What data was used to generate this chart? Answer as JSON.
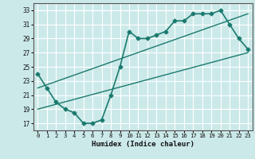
{
  "xlabel": "Humidex (Indice chaleur)",
  "bg_color": "#cce9e9",
  "grid_color": "#ffffff",
  "line_color": "#1a7a6e",
  "xlim": [
    -0.5,
    23.5
  ],
  "ylim": [
    16,
    34
  ],
  "xticks": [
    0,
    1,
    2,
    3,
    4,
    5,
    6,
    7,
    8,
    9,
    10,
    11,
    12,
    13,
    14,
    15,
    16,
    17,
    18,
    19,
    20,
    21,
    22,
    23
  ],
  "yticks": [
    17,
    19,
    21,
    23,
    25,
    27,
    29,
    31,
    33
  ],
  "line1_x": [
    0,
    1,
    2,
    3,
    4,
    5,
    6,
    7,
    8,
    9,
    10,
    11,
    12,
    13,
    14,
    15,
    16,
    17,
    18,
    19,
    20,
    21,
    22,
    23
  ],
  "line1_y": [
    24,
    22,
    20,
    19,
    18.5,
    17,
    17,
    17.5,
    21,
    25,
    30,
    29,
    29,
    29.5,
    30,
    31.5,
    31.5,
    32.5,
    32.5,
    32.5,
    33,
    31,
    29,
    27.5
  ],
  "line2_x": [
    0,
    23
  ],
  "line2_y": [
    19,
    27
  ],
  "line3_x": [
    0,
    23
  ],
  "line3_y": [
    22,
    32.5
  ]
}
